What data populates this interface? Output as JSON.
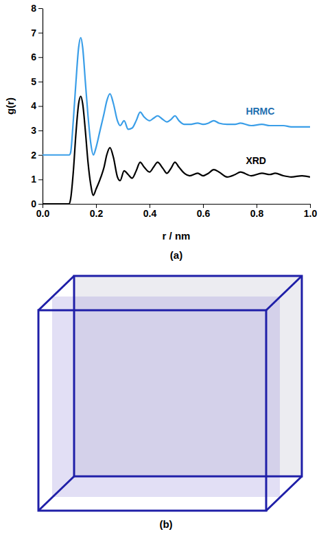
{
  "chart_data": {
    "type": "line",
    "x_label": "r / nm",
    "y_label": "g(r)",
    "x": [
      0,
      0.1,
      0.105,
      0.115,
      0.125,
      0.135,
      0.143,
      0.15,
      0.16,
      0.17,
      0.18,
      0.19,
      0.2,
      0.215,
      0.23,
      0.24,
      0.252,
      0.265,
      0.28,
      0.29,
      0.305,
      0.32,
      0.335,
      0.35,
      0.365,
      0.38,
      0.4,
      0.415,
      0.43,
      0.45,
      0.465,
      0.48,
      0.495,
      0.51,
      0.53,
      0.55,
      0.58,
      0.6,
      0.62,
      0.64,
      0.66,
      0.69,
      0.72,
      0.74,
      0.78,
      0.82,
      0.85,
      0.87,
      0.9,
      0.93,
      0.97,
      1.0
    ],
    "series": [
      {
        "name": "HRMC",
        "color": "#3a9ee8",
        "values": [
          2,
          2,
          2.1,
          3.4,
          5.0,
          6.4,
          6.8,
          6.4,
          5.0,
          3.6,
          2.5,
          2.0,
          2.3,
          3.0,
          3.7,
          4.2,
          4.5,
          4.1,
          3.4,
          3.2,
          3.4,
          3.05,
          3.1,
          3.4,
          3.75,
          3.55,
          3.4,
          3.5,
          3.6,
          3.45,
          3.35,
          3.45,
          3.6,
          3.4,
          3.25,
          3.25,
          3.3,
          3.25,
          3.3,
          3.4,
          3.3,
          3.25,
          3.25,
          3.3,
          3.2,
          3.25,
          3.2,
          3.2,
          3.2,
          3.15,
          3.15,
          3.15
        ]
      },
      {
        "name": "XRD",
        "color": "#000000",
        "values": [
          0,
          0,
          0.2,
          1.3,
          2.9,
          4.1,
          4.4,
          4.1,
          3.0,
          1.7,
          0.8,
          0.35,
          0.6,
          1.0,
          1.5,
          2.0,
          2.3,
          1.9,
          1.1,
          0.95,
          1.35,
          1.2,
          1.05,
          1.35,
          1.7,
          1.5,
          1.3,
          1.5,
          1.7,
          1.45,
          1.25,
          1.45,
          1.7,
          1.5,
          1.25,
          1.15,
          1.25,
          1.15,
          1.25,
          1.4,
          1.3,
          1.1,
          1.2,
          1.3,
          1.15,
          1.25,
          1.2,
          1.25,
          1.15,
          1.1,
          1.15,
          1.1
        ]
      }
    ],
    "xlim": [
      0,
      1
    ],
    "xticks": [
      {
        "value": 0,
        "label": "0.0"
      },
      {
        "value": 0.2,
        "label": "0.2"
      },
      {
        "value": 0.4,
        "label": "0.4"
      },
      {
        "value": 0.6,
        "label": "0.6"
      },
      {
        "value": 0.8,
        "label": "0.8"
      },
      {
        "value": 1,
        "label": "1.0"
      }
    ],
    "ylim": [
      0,
      8
    ],
    "yticks": [
      0,
      1,
      2,
      3,
      4,
      5,
      6,
      7,
      8
    ],
    "grid": false
  },
  "figure": {
    "captions": [
      "(a)",
      "(b)"
    ]
  }
}
